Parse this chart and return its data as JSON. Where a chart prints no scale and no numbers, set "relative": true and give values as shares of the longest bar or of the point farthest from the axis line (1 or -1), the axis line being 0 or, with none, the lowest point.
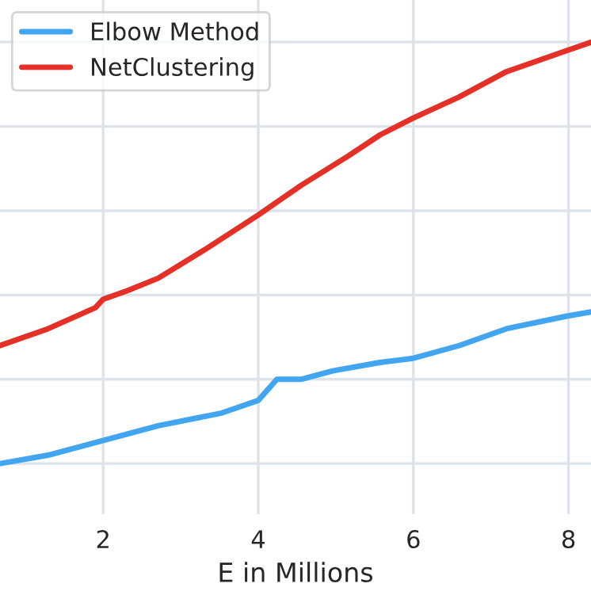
{
  "chart_data": {
    "type": "line",
    "xlabel": "E in Millions",
    "relative": true,
    "xlim": [
      0.67,
      8.29
    ],
    "xticks": [
      2,
      4,
      6,
      8
    ],
    "grid": true,
    "legend": "top left",
    "line_style": "solid",
    "series": [
      {
        "name": "Elbow Method",
        "color": "#42a5f0",
        "x": [
          0.67,
          1.29,
          1.9,
          2.71,
          3.53,
          4,
          4.24,
          4.55,
          4.96,
          5.57,
          6,
          6.59,
          7.2,
          7.98,
          8.29
        ],
        "values": [
          0,
          0.02,
          0.05,
          0.09,
          0.12,
          0.15,
          0.2,
          0.2,
          0.22,
          0.24,
          0.25,
          0.28,
          0.32,
          0.35,
          0.36
        ]
      },
      {
        "name": "NetClustering",
        "color": "#e53027",
        "x": [
          0.67,
          1.29,
          1.9,
          2,
          2.31,
          2.71,
          3.33,
          4,
          4.55,
          5.16,
          5.57,
          6,
          6.59,
          7.2,
          7.98,
          8.29
        ],
        "values": [
          0.28,
          0.32,
          0.37,
          0.39,
          0.41,
          0.44,
          0.51,
          0.59,
          0.66,
          0.73,
          0.78,
          0.82,
          0.87,
          0.93,
          0.98,
          1.0
        ]
      }
    ]
  }
}
